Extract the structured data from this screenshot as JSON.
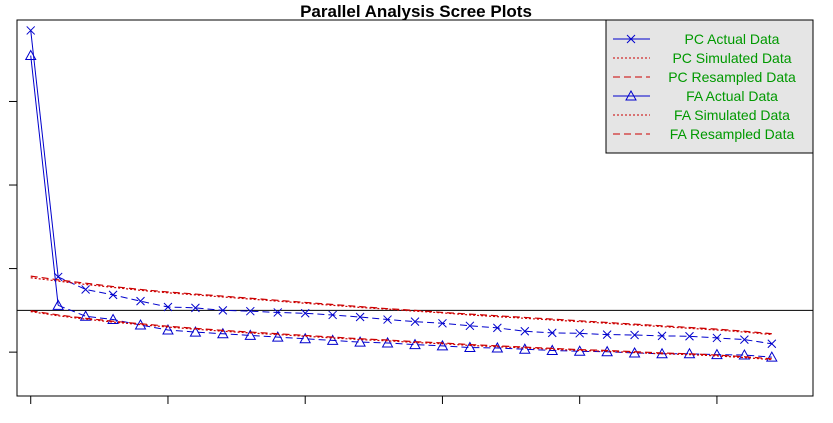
{
  "chart_data": {
    "type": "line",
    "title": "Parallel Analysis Scree Plots",
    "xlabel": "",
    "ylabel": "",
    "xlim": [
      0.5,
      29.5
    ],
    "ylim": [
      -1.05,
      7.95
    ],
    "x": [
      1,
      2,
      3,
      4,
      5,
      6,
      7,
      8,
      9,
      10,
      11,
      12,
      13,
      14,
      15,
      16,
      17,
      18,
      19,
      20,
      21,
      22,
      23,
      24,
      25,
      26,
      27,
      28
    ],
    "reference_line_y": 1,
    "legend_position": "top-right",
    "grid": false,
    "series": [
      {
        "name": "PC  Actual Data",
        "color": "#0000cd",
        "line": "solid-then-dashed",
        "marker": "x",
        "values": [
          7.7,
          1.8,
          1.5,
          1.37,
          1.22,
          1.08,
          1.06,
          1.0,
          0.98,
          0.95,
          0.93,
          0.89,
          0.84,
          0.78,
          0.73,
          0.69,
          0.63,
          0.58,
          0.5,
          0.46,
          0.45,
          0.42,
          0.41,
          0.39,
          0.38,
          0.34,
          0.3,
          0.2
        ]
      },
      {
        "name": "PC  Simulated Data",
        "color": "#cc0000",
        "line": "dotted",
        "marker": "none",
        "values": [
          1.78,
          1.7,
          1.62,
          1.55,
          1.48,
          1.42,
          1.37,
          1.32,
          1.27,
          1.22,
          1.17,
          1.12,
          1.07,
          1.03,
          0.98,
          0.94,
          0.89,
          0.85,
          0.81,
          0.77,
          0.73,
          0.69,
          0.65,
          0.61,
          0.57,
          0.53,
          0.48,
          0.42
        ]
      },
      {
        "name": "PC  Resampled Data",
        "color": "#cc0000",
        "line": "dashed",
        "marker": "none",
        "values": [
          1.82,
          1.73,
          1.65,
          1.57,
          1.5,
          1.44,
          1.39,
          1.34,
          1.29,
          1.24,
          1.19,
          1.14,
          1.09,
          1.04,
          1.0,
          0.95,
          0.91,
          0.87,
          0.83,
          0.79,
          0.75,
          0.71,
          0.67,
          0.63,
          0.59,
          0.55,
          0.5,
          0.44
        ]
      },
      {
        "name": "FA  Actual Data",
        "color": "#0000cd",
        "line": "solid-then-dashed",
        "marker": "triangle",
        "values": [
          7.1,
          1.12,
          0.86,
          0.78,
          0.65,
          0.53,
          0.48,
          0.44,
          0.4,
          0.36,
          0.32,
          0.28,
          0.24,
          0.22,
          0.18,
          0.15,
          0.11,
          0.1,
          0.07,
          0.04,
          0.02,
          0.01,
          -0.02,
          -0.04,
          -0.04,
          -0.06,
          -0.07,
          -0.12
        ]
      },
      {
        "name": "FA  Simulated Data",
        "color": "#cc0000",
        "line": "dotted",
        "marker": "none",
        "values": [
          0.97,
          0.87,
          0.79,
          0.72,
          0.66,
          0.6,
          0.55,
          0.5,
          0.46,
          0.42,
          0.38,
          0.34,
          0.3,
          0.27,
          0.23,
          0.2,
          0.16,
          0.13,
          0.1,
          0.07,
          0.04,
          0.02,
          -0.01,
          -0.04,
          -0.06,
          -0.09,
          -0.13,
          -0.18
        ]
      },
      {
        "name": "FA  Resampled Data",
        "color": "#cc0000",
        "line": "dashed",
        "marker": "none",
        "values": [
          0.99,
          0.89,
          0.81,
          0.74,
          0.68,
          0.62,
          0.57,
          0.52,
          0.48,
          0.44,
          0.4,
          0.36,
          0.32,
          0.29,
          0.25,
          0.22,
          0.18,
          0.15,
          0.12,
          0.09,
          0.06,
          0.04,
          0.01,
          -0.02,
          -0.04,
          -0.07,
          -0.11,
          -0.16
        ]
      }
    ]
  }
}
